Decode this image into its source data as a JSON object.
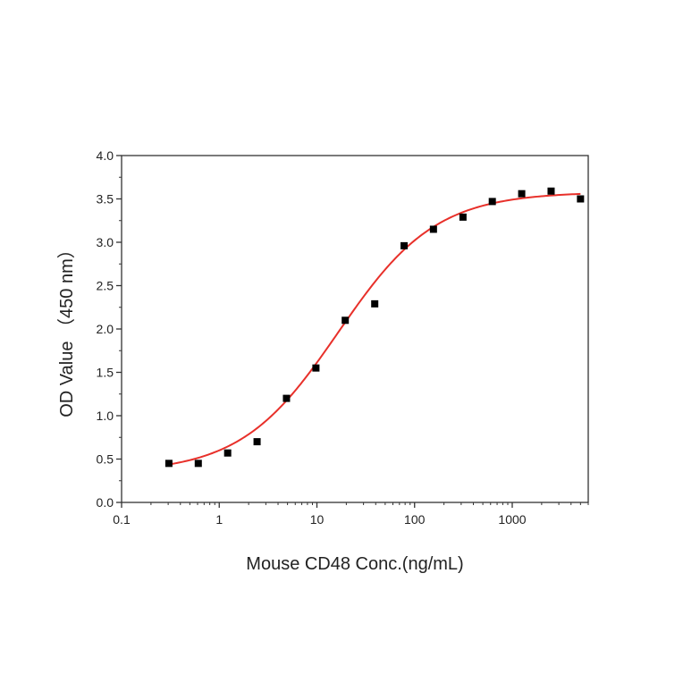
{
  "chart_data": {
    "type": "scatter",
    "xlabel": "Mouse CD48 Conc.(ng/mL)",
    "ylabel": "OD Value （450 nm）",
    "x_scale": "log",
    "xlim": [
      0.1,
      6000
    ],
    "ylim": [
      0.0,
      4.0
    ],
    "x_ticks": [
      {
        "value": 0.1,
        "label": "0.1"
      },
      {
        "value": 1,
        "label": "1"
      },
      {
        "value": 10,
        "label": "10"
      },
      {
        "value": 100,
        "label": "100"
      },
      {
        "value": 1000,
        "label": "1000"
      }
    ],
    "y_ticks": [
      {
        "value": 0.0,
        "label": "0.0"
      },
      {
        "value": 0.5,
        "label": "0.5"
      },
      {
        "value": 1.0,
        "label": "1.0"
      },
      {
        "value": 1.5,
        "label": "1.5"
      },
      {
        "value": 2.0,
        "label": "2.0"
      },
      {
        "value": 2.5,
        "label": "2.5"
      },
      {
        "value": 3.0,
        "label": "3.0"
      },
      {
        "value": 3.5,
        "label": "3.5"
      },
      {
        "value": 4.0,
        "label": "4.0"
      }
    ],
    "grid": false,
    "points": {
      "marker": "square",
      "color": "#000000",
      "x": [
        0.305,
        0.61,
        1.22,
        2.44,
        4.88,
        9.77,
        19.5,
        39.1,
        78.1,
        156,
        313,
        625,
        1250,
        2500,
        5000
      ],
      "y": [
        0.45,
        0.45,
        0.57,
        0.7,
        1.2,
        1.55,
        2.1,
        2.29,
        2.96,
        3.15,
        3.29,
        3.47,
        3.56,
        3.59,
        3.5
      ]
    },
    "fit_curve": {
      "type": "4PL",
      "color": "#e8302a",
      "bottom": 0.34,
      "top": 3.58,
      "ec50": 16.5,
      "hill": 0.87,
      "x_range": [
        0.305,
        5000
      ]
    }
  }
}
